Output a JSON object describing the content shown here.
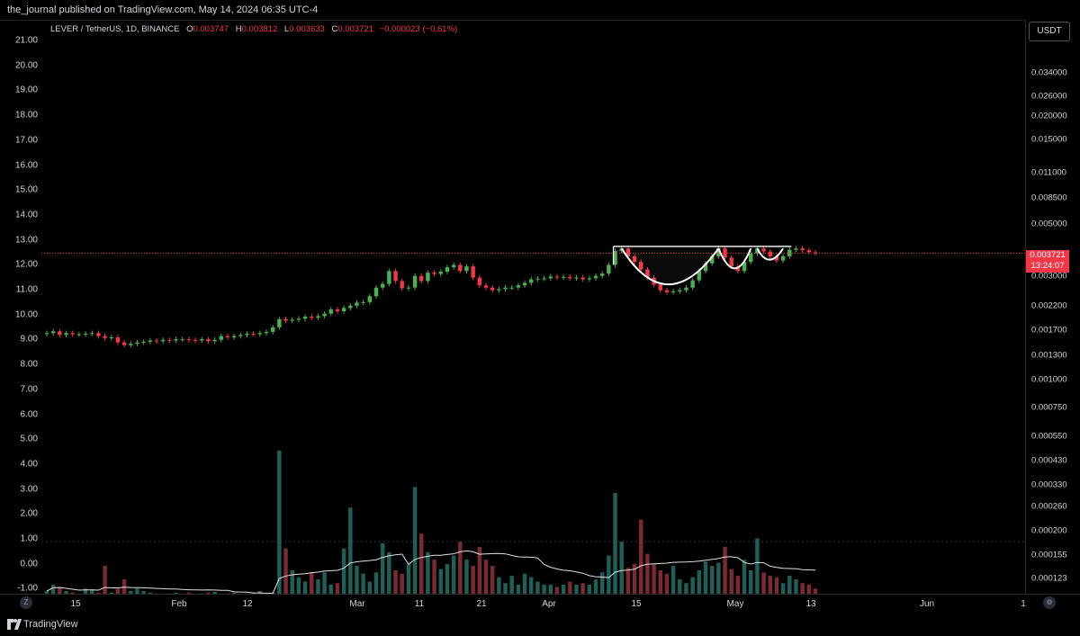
{
  "header": {
    "publisher": "the_journal published on TradingView.com, May 14, 2024 06:35 UTC-4"
  },
  "symbol": {
    "name": "LEVER / TetherUS, 1D, BINANCE",
    "open_label": "O",
    "open": "0.003747",
    "high_label": "H",
    "high": "0.003812",
    "low_label": "L",
    "low": "0.003633",
    "close_label": "C",
    "close": "0.003721",
    "change": "−0.000023 (−0.61%)"
  },
  "currency_button": "USDT",
  "last_price": {
    "price": "0.003721",
    "countdown": "13:24:07"
  },
  "left_axis": [
    "21.00",
    "20.00",
    "19.00",
    "18.00",
    "17.00",
    "16.00",
    "15.00",
    "14.00",
    "13.00",
    "12.00",
    "11.00",
    "10.00",
    "9.00",
    "8.00",
    "7.00",
    "6.00",
    "5.00",
    "4.00",
    "3.00",
    "2.00",
    "1.00",
    "0.00",
    "-1.00"
  ],
  "right_axis": [
    "0.034000",
    "0.026000",
    "0.020000",
    "0.015000",
    "0.011000",
    "0.008500",
    "0.005000",
    "0.003000",
    "0.002200",
    "0.001700",
    "0.001300",
    "0.001000",
    "0.000750",
    "0.000550",
    "0.000430",
    "0.000330",
    "0.000260",
    "0.000200",
    "0.000155",
    "0.000123"
  ],
  "time_axis": [
    "15",
    "Feb",
    "12",
    "Mar",
    "11",
    "21",
    "Apr",
    "15",
    "May",
    "13",
    "Jun",
    "1"
  ],
  "zoom_left_icon": "Z",
  "settings_icon": "gear",
  "footer": {
    "brand": "TradingView"
  },
  "colors": {
    "up": "#26a69a",
    "up_candle": "#4caf50",
    "down": "#f23645",
    "vol_up": "#1f5f58",
    "vol_down": "#7a2a30",
    "ma": "#e0e0e0",
    "pattern": "#ffffff"
  },
  "chart_data": {
    "type": "candlestick",
    "symbol": "LEVER / TetherUS",
    "interval": "1D",
    "exchange": "BINANCE",
    "ylim": [
      0.000123,
      0.034
    ],
    "y_scale": "log",
    "last": 0.003721,
    "annotations": [
      "cup and handle pattern",
      "resistance line"
    ],
    "price_path": [
      0.00165,
      0.00168,
      0.00162,
      0.00165,
      0.00163,
      0.00163,
      0.00164,
      0.00165,
      0.0016,
      0.00157,
      0.00158,
      0.0015,
      0.00146,
      0.00148,
      0.0015,
      0.00151,
      0.00153,
      0.00152,
      0.00154,
      0.00153,
      0.00155,
      0.00155,
      0.00154,
      0.00153,
      0.00155,
      0.00152,
      0.00154,
      0.0016,
      0.00158,
      0.0016,
      0.00162,
      0.00164,
      0.00163,
      0.00165,
      0.00167,
      0.00175,
      0.0019,
      0.00187,
      0.00189,
      0.00191,
      0.00195,
      0.00193,
      0.00196,
      0.00201,
      0.0021,
      0.00206,
      0.00213,
      0.00218,
      0.00225,
      0.00226,
      0.0024,
      0.00262,
      0.00272,
      0.0031,
      0.0028,
      0.0026,
      0.00262,
      0.00295,
      0.0028,
      0.00305,
      0.00301,
      0.00308,
      0.00322,
      0.0033,
      0.0031,
      0.00325,
      0.0029,
      0.00268,
      0.00262,
      0.00255,
      0.00258,
      0.00262,
      0.00262,
      0.00268,
      0.00275,
      0.00285,
      0.00287,
      0.00288,
      0.00293,
      0.0029,
      0.00292,
      0.00288,
      0.0029,
      0.00285,
      0.00288,
      0.00295,
      0.00302,
      0.0033,
      0.0038,
      0.0039,
      0.0036,
      0.0034,
      0.00315,
      0.0029,
      0.0027,
      0.00255,
      0.0025,
      0.00252,
      0.00255,
      0.00262,
      0.00282,
      0.0031,
      0.00335,
      0.0036,
      0.0039,
      0.00355,
      0.00325,
      0.0031,
      0.0034,
      0.0037,
      0.0039,
      0.00378,
      0.0036,
      0.00345,
      0.0036,
      0.00385,
      0.0039,
      0.00383,
      0.00375,
      0.00372
    ],
    "volume_path": [
      0.00012,
      0.000128,
      0.000125,
      0.00012,
      0.000118,
      0.000115,
      0.000123,
      0.000122,
      0.000118,
      0.000155,
      0.000118,
      0.000123,
      0.000135,
      0.00012,
      0.000123,
      0.00012,
      0.000118,
      0.000117,
      0.000116,
      0.000117,
      0.000118,
      0.000116,
      0.000118,
      0.000115,
      0.000117,
      0.000118,
      0.000119,
      0.000116,
      0.000117,
      0.000118,
      0.000115,
      0.000117,
      0.000118,
      0.00012,
      0.000117,
      0.000118,
      0.0005,
      0.000185,
      0.000148,
      0.000138,
      0.000132,
      0.000145,
      0.000135,
      0.000145,
      0.000128,
      0.00013,
      0.000185,
      0.00028,
      0.000155,
      0.000143,
      0.000132,
      0.000145,
      0.000195,
      0.000178,
      0.000148,
      0.000143,
      0.000158,
      0.000345,
      0.000215,
      0.000178,
      0.000165,
      0.00015,
      0.000158,
      0.000172,
      0.000198,
      0.000165,
      0.000155,
      0.000188,
      0.000165,
      0.000155,
      0.000138,
      0.00013,
      0.00014,
      0.000128,
      0.000143,
      0.000138,
      0.000132,
      0.000128,
      0.000128,
      0.000125,
      0.000128,
      0.000132,
      0.000128,
      0.00013,
      0.000128,
      0.000135,
      0.000145,
      0.000172,
      0.000325,
      0.000198,
      0.000152,
      0.000158,
      0.000248,
      0.000175,
      0.000158,
      0.000148,
      0.000143,
      0.000155,
      0.000135,
      0.00013,
      0.000138,
      0.000148,
      0.000162,
      0.000155,
      0.00016,
      0.000188,
      0.00015,
      0.00014,
      0.000165,
      0.000148,
      0.000205,
      0.000145,
      0.00014,
      0.000138,
      0.00013,
      0.00014,
      0.000135,
      0.00013,
      0.000128,
      0.000123
    ]
  }
}
